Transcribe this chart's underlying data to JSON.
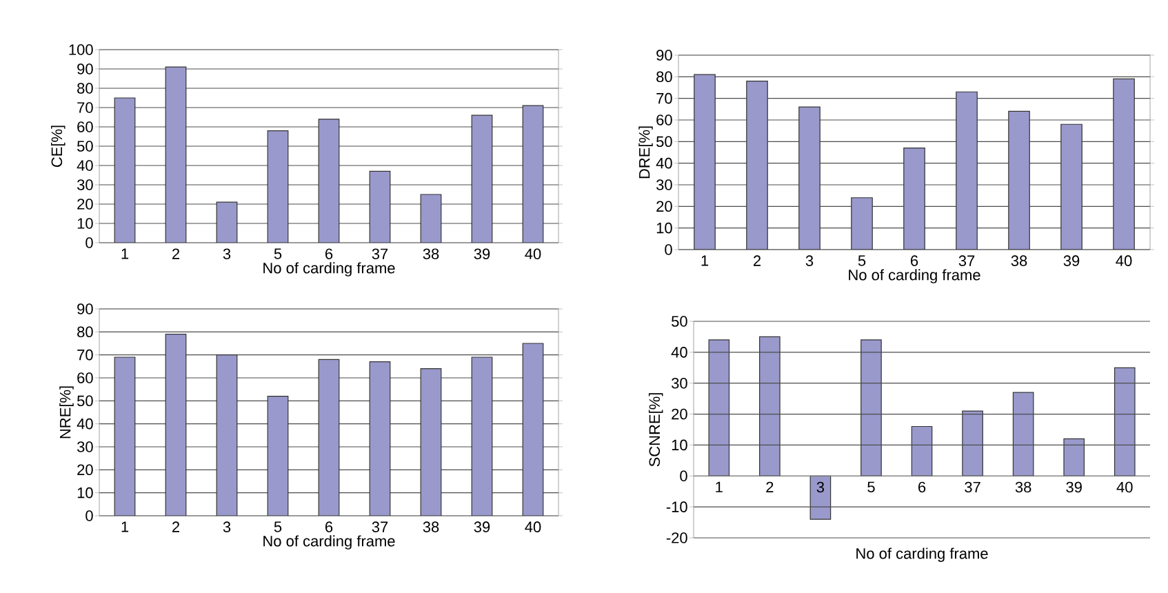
{
  "chart_data": [
    {
      "type": "bar",
      "xlabel": "No of carding frame",
      "ylabel": "CE[%]",
      "categories": [
        "1",
        "2",
        "3",
        "5",
        "6",
        "37",
        "38",
        "39",
        "40"
      ],
      "values": [
        75,
        91,
        21,
        58,
        64,
        37,
        25,
        66,
        71
      ],
      "color": "#9999cc",
      "ylim": [
        0,
        100
      ],
      "yticks": [
        0,
        10,
        20,
        30,
        40,
        50,
        60,
        70,
        80,
        90,
        100
      ],
      "grid": "y"
    },
    {
      "type": "bar",
      "xlabel": "No of carding frame",
      "ylabel": "DRE[%]",
      "categories": [
        "1",
        "2",
        "3",
        "5",
        "6",
        "37",
        "38",
        "39",
        "40"
      ],
      "values": [
        81,
        78,
        66,
        24,
        47,
        73,
        64,
        58,
        79
      ],
      "color": "#9999cc",
      "ylim": [
        0,
        90
      ],
      "yticks": [
        0,
        10,
        20,
        30,
        40,
        50,
        60,
        70,
        80,
        90
      ],
      "grid": "y"
    },
    {
      "type": "bar",
      "xlabel": "No of carding frame",
      "ylabel": "NRE[%]",
      "categories": [
        "1",
        "2",
        "3",
        "5",
        "6",
        "37",
        "38",
        "39",
        "40"
      ],
      "values": [
        69,
        79,
        70,
        52,
        68,
        67,
        64,
        69,
        75
      ],
      "color": "#9999cc",
      "ylim": [
        0,
        90
      ],
      "yticks": [
        0,
        10,
        20,
        30,
        40,
        50,
        60,
        70,
        80,
        90
      ],
      "grid": "y"
    },
    {
      "type": "bar",
      "xlabel": "No of carding frame",
      "ylabel": "SCNRE[%]",
      "categories": [
        "1",
        "2",
        "3",
        "5",
        "6",
        "37",
        "38",
        "39",
        "40"
      ],
      "values": [
        44,
        45,
        -14,
        44,
        16,
        21,
        27,
        12,
        35
      ],
      "color": "#9999cc",
      "ylim": [
        -20,
        50
      ],
      "yticks": [
        -20,
        -10,
        0,
        10,
        20,
        30,
        40,
        50
      ],
      "grid": "y"
    }
  ]
}
